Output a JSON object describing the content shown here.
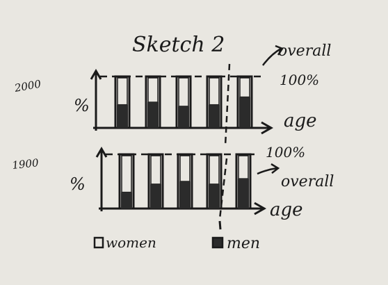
{
  "title": "Sketch 2",
  "x_label": "age",
  "y_label": "%",
  "overall_label": "overall",
  "percent_label": "100%",
  "legend": {
    "women": "women",
    "men": "men"
  },
  "colors": {
    "ink": "#1a1a1a",
    "paper": "#e9e7e1",
    "men_fill": "#2b2b2b",
    "women_fill": "#e9e7e1"
  },
  "chart_data": [
    {
      "type": "bar",
      "stacked": true,
      "title": "2000",
      "xlabel": "age",
      "ylabel": "%",
      "ylim": [
        0,
        100
      ],
      "categories": [
        "",
        "",
        "",
        "",
        ""
      ],
      "series": [
        {
          "name": "men",
          "values": [
            45,
            50,
            42,
            45,
            60
          ]
        },
        {
          "name": "women",
          "values": [
            55,
            50,
            58,
            55,
            40
          ]
        }
      ]
    },
    {
      "type": "bar",
      "stacked": true,
      "title": "1900",
      "xlabel": "age",
      "ylabel": "%",
      "ylim": [
        0,
        100
      ],
      "categories": [
        "",
        "",
        "",
        "",
        ""
      ],
      "series": [
        {
          "name": "men",
          "values": [
            30,
            45,
            50,
            45,
            55
          ]
        },
        {
          "name": "women",
          "values": [
            70,
            55,
            50,
            55,
            45
          ]
        }
      ]
    }
  ]
}
